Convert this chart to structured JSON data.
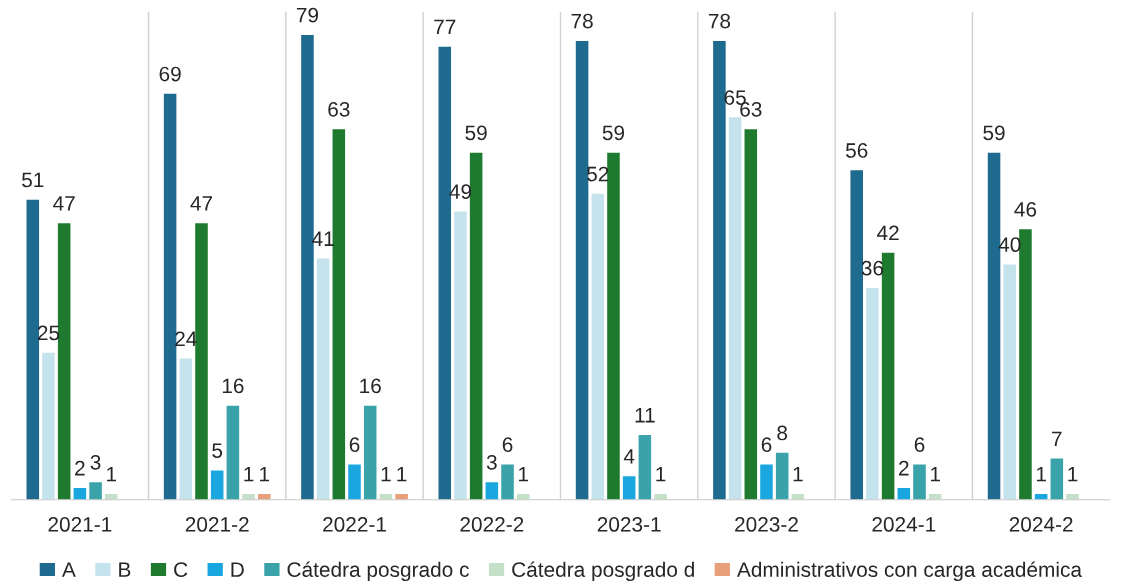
{
  "chart_data": {
    "type": "bar",
    "categories": [
      "2021-1",
      "2021-2",
      "2022-1",
      "2022-2",
      "2023-1",
      "2023-2",
      "2024-1",
      "2024-2"
    ],
    "series": [
      {
        "name": "A",
        "color": "#1f6a8f",
        "values": [
          51,
          69,
          79,
          77,
          78,
          78,
          56,
          59
        ]
      },
      {
        "name": "B",
        "color": "#c5e3ec",
        "values": [
          25,
          24,
          41,
          49,
          52,
          65,
          36,
          40
        ]
      },
      {
        "name": "C",
        "color": "#1e7a2e",
        "values": [
          47,
          47,
          63,
          59,
          59,
          63,
          42,
          46
        ]
      },
      {
        "name": "D",
        "color": "#1aa7e0",
        "values": [
          2,
          5,
          6,
          3,
          4,
          6,
          2,
          1
        ]
      },
      {
        "name": "Cátedra posgrado c",
        "color": "#3aa3aa",
        "values": [
          3,
          16,
          16,
          6,
          11,
          8,
          6,
          7
        ]
      },
      {
        "name": "Cátedra posgrado d",
        "color": "#c4e0c8",
        "values": [
          1,
          1,
          1,
          1,
          1,
          1,
          1,
          1
        ]
      },
      {
        "name": "Administrativos con carga académica",
        "color": "#e8a07a",
        "values": [
          null,
          1,
          1,
          null,
          null,
          null,
          null,
          null
        ]
      }
    ],
    "data_labels": true,
    "grid": "x",
    "legend": "bottom",
    "tick_labels": "x"
  }
}
